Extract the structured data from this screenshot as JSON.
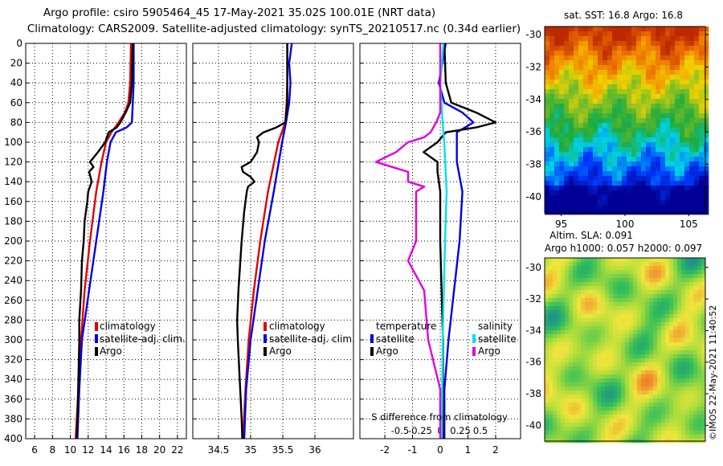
{
  "header": {
    "line1": "Argo profile: csiro 5905464_45 17-May-2021 35.02S 100.01E (NRT data)",
    "line2": "Climatology: CARS2009. Satellite-adjusted climatology: synTS_20210517.nc (0.34d earlier)"
  },
  "colors": {
    "climatology": "#e00000",
    "satellite": "#0000e0",
    "argo": "#000000",
    "salinity_satellite": "#00e0f0",
    "salinity_argo": "#e000e0"
  },
  "chart_data": [
    {
      "type": "line",
      "name": "temperature-profile",
      "xlim": [
        5,
        23
      ],
      "ylim": [
        0,
        400
      ],
      "xticks": [
        6,
        8,
        10,
        12,
        14,
        16,
        18,
        20,
        22
      ],
      "yticks": [
        0,
        20,
        40,
        60,
        80,
        100,
        120,
        140,
        160,
        180,
        200,
        220,
        240,
        260,
        280,
        300,
        320,
        340,
        360,
        380,
        400
      ],
      "legend": [
        "climatology",
        "satellite-adj. clim.",
        "Argo"
      ],
      "series": [
        {
          "name": "climatology",
          "color": "#e00000",
          "depth": [
            0,
            40,
            60,
            70,
            80,
            90,
            100,
            120,
            150,
            200,
            250,
            300,
            350,
            400
          ],
          "values": [
            16.8,
            16.7,
            16.5,
            16.1,
            15.4,
            14.6,
            14.0,
            13.5,
            12.9,
            12.2,
            11.6,
            11.2,
            10.9,
            10.6
          ]
        },
        {
          "name": "satellite-adj. clim.",
          "color": "#0000e0",
          "depth": [
            0,
            40,
            60,
            80,
            85,
            90,
            100,
            120,
            150,
            200,
            250,
            300,
            350,
            400
          ],
          "values": [
            17.1,
            17.1,
            17.0,
            16.9,
            16.3,
            15.1,
            14.5,
            14.1,
            13.7,
            12.9,
            12.1,
            11.3,
            11.0,
            10.8
          ]
        },
        {
          "name": "Argo",
          "color": "#000000",
          "depth": [
            0,
            40,
            60,
            70,
            80,
            85,
            90,
            100,
            110,
            120,
            125,
            130,
            140,
            145,
            150,
            160,
            180,
            200,
            220,
            250,
            280,
            300,
            340,
            380,
            400
          ],
          "values": [
            17.0,
            16.9,
            16.7,
            16.2,
            15.6,
            15.2,
            14.3,
            13.9,
            13.1,
            12.2,
            12.6,
            12.1,
            12.4,
            12.2,
            12.0,
            11.9,
            11.6,
            11.5,
            11.3,
            11.2,
            11.0,
            11.0,
            10.9,
            10.8,
            10.7
          ]
        }
      ]
    },
    {
      "type": "line",
      "name": "salinity-profile",
      "xlim": [
        34.1,
        36.6
      ],
      "ylim": [
        0,
        400
      ],
      "xticks": [
        34.5,
        35,
        35.5,
        36
      ],
      "legend": [
        "climatology",
        "satellite-adj. clim.",
        "Argo"
      ],
      "series": [
        {
          "name": "climatology",
          "color": "#e00000",
          "depth": [
            0,
            40,
            60,
            80,
            100,
            150,
            200,
            250,
            300,
            350,
            400
          ],
          "values": [
            35.57,
            35.57,
            35.56,
            35.54,
            35.43,
            35.27,
            35.15,
            35.05,
            34.97,
            34.92,
            34.88
          ]
        },
        {
          "name": "satellite-adj. clim.",
          "color": "#0000e0",
          "depth": [
            0,
            20,
            40,
            60,
            80,
            100,
            150,
            200,
            250,
            300,
            350,
            400
          ],
          "values": [
            35.64,
            35.6,
            35.62,
            35.6,
            35.55,
            35.49,
            35.36,
            35.22,
            35.11,
            35.0,
            34.93,
            34.9
          ]
        },
        {
          "name": "Argo",
          "color": "#000000",
          "depth": [
            0,
            60,
            80,
            85,
            90,
            95,
            100,
            110,
            120,
            125,
            130,
            135,
            140,
            145,
            150,
            170,
            200,
            220,
            250,
            280,
            300,
            340,
            380,
            400
          ],
          "values": [
            35.57,
            35.57,
            35.54,
            35.4,
            35.2,
            35.1,
            35.13,
            35.1,
            35.0,
            34.86,
            34.88,
            35.0,
            35.06,
            34.96,
            34.94,
            34.9,
            34.86,
            34.84,
            34.81,
            34.79,
            34.8,
            34.83,
            34.86,
            34.87
          ]
        }
      ]
    },
    {
      "type": "line",
      "name": "difference-from-climatology",
      "xlim": [
        -2.9,
        2.9
      ],
      "ylim": [
        0,
        400
      ],
      "xticks": [
        -2,
        -1,
        0,
        1,
        2
      ],
      "xlabel": "S difference from climatology",
      "secondary_xticks": [
        -0.5,
        -0.25,
        0,
        0.25,
        0.5
      ],
      "legend_left_title": "temperature",
      "legend_right_title": "salinity",
      "legend": [
        "satellite",
        "Argo",
        "satellite",
        "Argo"
      ],
      "series": [
        {
          "name": "temperature satellite",
          "color": "#0000e0",
          "depth": [
            0,
            40,
            60,
            70,
            80,
            90,
            100,
            120,
            150,
            200,
            250,
            300,
            350,
            400
          ],
          "values": [
            0.2,
            -0.05,
            0.15,
            0.8,
            1.2,
            0.6,
            0.6,
            0.6,
            0.8,
            0.7,
            0.5,
            0.3,
            0.15,
            0.15
          ]
        },
        {
          "name": "temperature Argo",
          "color": "#000000",
          "depth": [
            0,
            40,
            60,
            70,
            80,
            85,
            90,
            100,
            110,
            120,
            130,
            150,
            200,
            250,
            300,
            350,
            400
          ],
          "values": [
            0.15,
            0.2,
            0.4,
            1.3,
            2.0,
            1.3,
            0.2,
            -0.1,
            -0.6,
            -0.1,
            -0.1,
            0.0,
            0.0,
            0.05,
            0.1,
            0.1,
            0.1
          ]
        },
        {
          "name": "salinity satellite",
          "color": "#00e0f0",
          "depth": [
            0,
            40,
            80,
            100,
            150,
            200,
            300,
            400
          ],
          "values": [
            0.04,
            0.0,
            0.03,
            0.05,
            0.08,
            0.06,
            0.03,
            0.02
          ]
        },
        {
          "name": "salinity Argo",
          "color": "#e000e0",
          "depth": [
            0,
            40,
            70,
            80,
            90,
            95,
            100,
            110,
            120,
            125,
            130,
            140,
            145,
            150,
            200,
            220,
            250,
            300,
            350,
            400
          ],
          "values": [
            0.0,
            0.0,
            0.0,
            -0.05,
            -0.12,
            -0.2,
            -0.4,
            -0.55,
            -0.8,
            -0.6,
            -0.4,
            -0.4,
            -0.2,
            -0.3,
            -0.3,
            -0.4,
            -0.2,
            -0.15,
            0.0,
            0.0
          ]
        }
      ]
    },
    {
      "type": "heatmap",
      "name": "sst-map",
      "title": "sat.  SST: 16.8 Argo: 16.8",
      "xticks": [
        95,
        100,
        105
      ],
      "yticks": [
        -30,
        -32,
        -34,
        -36,
        -38,
        -40
      ]
    },
    {
      "type": "heatmap",
      "name": "sla-map",
      "title_line1": "Altim. SLA: 0.091",
      "title_line2": "Argo h1000: 0.057 h2000: 0.097",
      "yticks": [
        -30,
        -32,
        -34,
        -36,
        -38,
        -40
      ]
    }
  ],
  "credit": "©IMOS 22-May-2021 11:40:52"
}
